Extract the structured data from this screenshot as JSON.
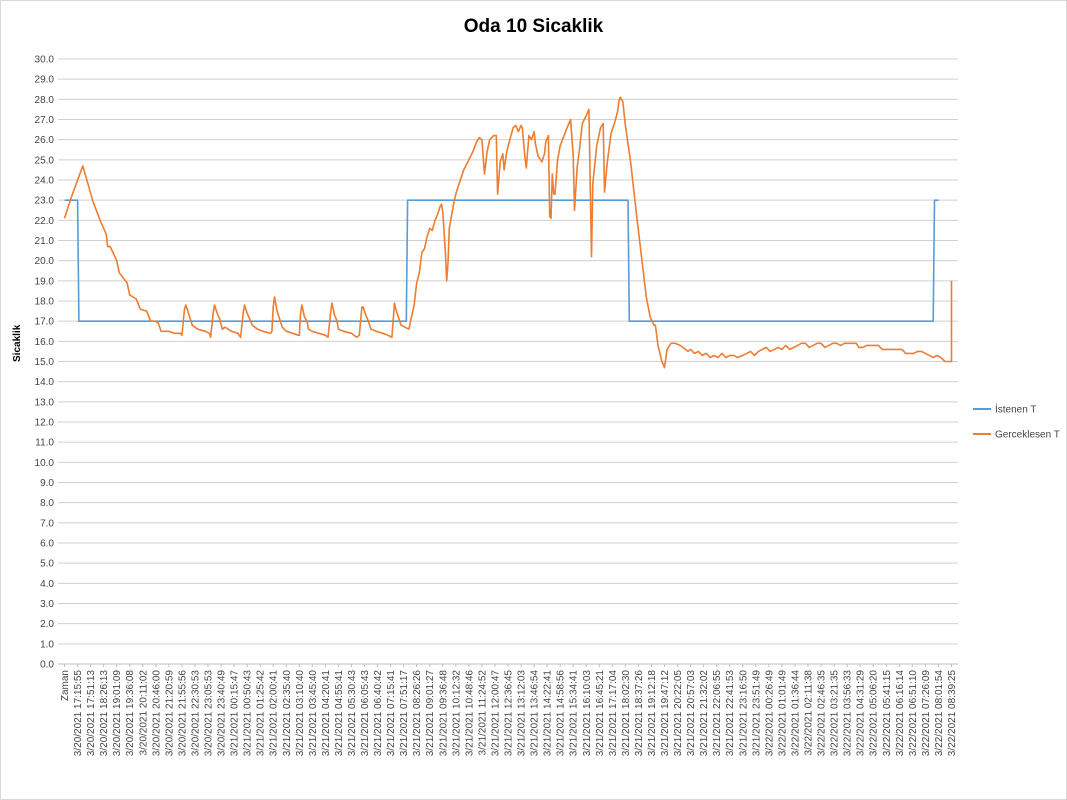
{
  "chart_data": {
    "type": "line",
    "title": "Oda 10 Sicaklik",
    "ylabel": "Sicaklik",
    "xlabel": "",
    "ylim": [
      0,
      30
    ],
    "ytick_step": 1,
    "grid": true,
    "legend_position": "right",
    "x_first_label": "Zaman",
    "x_tick_labels": [
      "3/20/2021 17:15:55",
      "3/20/2021 17:51:13",
      "3/20/2021 18:26:13",
      "3/20/2021 19:01:09",
      "3/20/2021 19:36:08",
      "3/20/2021 20:11:02",
      "3/20/2021 20:46:00",
      "3/20/2021 21:20:59",
      "3/20/2021 21:55:56",
      "3/20/2021 22:30:53",
      "3/20/2021 23:05:53",
      "3/20/2021 23:40:49",
      "3/21/2021 00:15:47",
      "3/21/2021 00:50:43",
      "3/21/2021 01:25:42",
      "3/21/2021 02:00:41",
      "3/21/2021 02:35:40",
      "3/21/2021 03:10:40",
      "3/21/2021 03:45:40",
      "3/21/2021 04:20:41",
      "3/21/2021 04:55:41",
      "3/21/2021 05:30:43",
      "3/21/2021 06:05:43",
      "3/21/2021 06:40:42",
      "3/21/2021 07:15:41",
      "3/21/2021 07:51:17",
      "3/21/2021 08:26:26",
      "3/21/2021 09:01:27",
      "3/21/2021 09:36:48",
      "3/21/2021 10:12:32",
      "3/21/2021 10:48:46",
      "3/21/2021 11:24:52",
      "3/21/2021 12:00:47",
      "3/21/2021 12:36:45",
      "3/21/2021 13:12:03",
      "3/21/2021 13:46:54",
      "3/21/2021 14:22:41",
      "3/21/2021 14:58:56",
      "3/21/2021 15:34:41",
      "3/21/2021 16:10:03",
      "3/21/2021 16:45:21",
      "3/21/2021 17:17:04",
      "3/21/2021 18:02:30",
      "3/21/2021 18:37:26",
      "3/21/2021 19:12:18",
      "3/21/2021 19:47:12",
      "3/21/2021 20:22:05",
      "3/21/2021 20:57:03",
      "3/21/2021 21:32:02",
      "3/21/2021 22:06:55",
      "3/21/2021 22:41:53",
      "3/21/2021 23:16:50",
      "3/21/2021 23:51:49",
      "3/22/2021 00:26:49",
      "3/22/2021 01:01:49",
      "3/22/2021 01:36:44",
      "3/22/2021 02:11:38",
      "3/22/2021 02:46:35",
      "3/22/2021 03:21:35",
      "3/22/2021 03:56:33",
      "3/22/2021 04:31:29",
      "3/22/2021 05:06:20",
      "3/22/2021 05:41:15",
      "3/22/2021 06:16:14",
      "3/22/2021 06:51:10",
      "3/22/2021 07:26:09",
      "3/22/2021 08:01:54",
      "3/22/2021 08:39:25"
    ],
    "series": [
      {
        "name": "İstenen T",
        "color": "#5b9bd5",
        "points": [
          [
            0,
            23
          ],
          [
            1,
            23
          ],
          [
            1.1,
            17
          ],
          [
            26.2,
            17
          ],
          [
            26.3,
            23
          ],
          [
            43.2,
            23
          ],
          [
            43.3,
            17
          ],
          [
            66.6,
            17
          ],
          [
            66.7,
            23
          ],
          [
            67.0,
            23
          ]
        ]
      },
      {
        "name": "Gerceklesen T",
        "color": "#ed7d31",
        "points": [
          [
            0,
            22.1
          ],
          [
            0.5,
            23.1
          ],
          [
            1.0,
            24.0
          ],
          [
            1.4,
            24.7
          ],
          [
            1.8,
            23.8
          ],
          [
            2.2,
            22.9
          ],
          [
            2.8,
            21.9
          ],
          [
            3.2,
            21.3
          ],
          [
            3.3,
            20.7
          ],
          [
            3.5,
            20.7
          ],
          [
            4.0,
            20.0
          ],
          [
            4.2,
            19.4
          ],
          [
            4.8,
            18.9
          ],
          [
            5.0,
            18.3
          ],
          [
            5.5,
            18.1
          ],
          [
            5.8,
            17.6
          ],
          [
            6.3,
            17.5
          ],
          [
            6.6,
            17.0
          ],
          [
            7.0,
            17.0
          ],
          [
            7.2,
            16.9
          ],
          [
            7.4,
            16.5
          ],
          [
            8.0,
            16.5
          ],
          [
            8.4,
            16.4
          ],
          [
            8.9,
            16.4
          ],
          [
            9.0,
            16.3
          ],
          [
            9.2,
            17.6
          ],
          [
            9.3,
            17.8
          ],
          [
            9.6,
            17.2
          ],
          [
            9.8,
            16.8
          ],
          [
            10.2,
            16.6
          ],
          [
            10.8,
            16.5
          ],
          [
            11.1,
            16.4
          ],
          [
            11.2,
            16.2
          ],
          [
            11.4,
            17.4
          ],
          [
            11.5,
            17.8
          ],
          [
            11.7,
            17.4
          ],
          [
            11.9,
            17.1
          ],
          [
            12.1,
            16.6
          ],
          [
            12.3,
            16.7
          ],
          [
            12.8,
            16.5
          ],
          [
            13.3,
            16.4
          ],
          [
            13.5,
            16.2
          ],
          [
            13.7,
            17.4
          ],
          [
            13.8,
            17.8
          ],
          [
            14.0,
            17.4
          ],
          [
            14.2,
            17.1
          ],
          [
            14.4,
            16.8
          ],
          [
            14.8,
            16.6
          ],
          [
            15.2,
            16.5
          ],
          [
            15.8,
            16.4
          ],
          [
            15.9,
            16.5
          ],
          [
            16.0,
            17.7
          ],
          [
            16.1,
            18.2
          ],
          [
            16.3,
            17.5
          ],
          [
            16.5,
            17.1
          ],
          [
            16.7,
            16.7
          ],
          [
            17.0,
            16.5
          ],
          [
            17.5,
            16.4
          ],
          [
            17.9,
            16.3
          ],
          [
            18.0,
            16.3
          ],
          [
            18.1,
            17.4
          ],
          [
            18.2,
            17.8
          ],
          [
            18.4,
            17.2
          ],
          [
            18.6,
            17.0
          ],
          [
            18.7,
            16.6
          ],
          [
            19.0,
            16.5
          ],
          [
            19.5,
            16.4
          ],
          [
            20.0,
            16.3
          ],
          [
            20.2,
            16.2
          ],
          [
            20.4,
            17.4
          ],
          [
            20.5,
            17.9
          ],
          [
            20.7,
            17.3
          ],
          [
            20.9,
            17.0
          ],
          [
            21.0,
            16.6
          ],
          [
            21.4,
            16.5
          ],
          [
            22.0,
            16.4
          ],
          [
            22.4,
            16.2
          ],
          [
            22.6,
            16.3
          ],
          [
            22.8,
            17.7
          ],
          [
            22.9,
            17.7
          ],
          [
            23.1,
            17.3
          ],
          [
            23.3,
            17.0
          ],
          [
            23.5,
            16.6
          ],
          [
            23.9,
            16.5
          ],
          [
            24.4,
            16.4
          ],
          [
            24.8,
            16.3
          ],
          [
            25.1,
            16.2
          ],
          [
            25.3,
            17.9
          ],
          [
            25.4,
            17.6
          ],
          [
            25.6,
            17.2
          ],
          [
            25.8,
            16.8
          ],
          [
            26.1,
            16.7
          ],
          [
            26.4,
            16.6
          ],
          [
            26.6,
            17.2
          ],
          [
            26.8,
            17.8
          ],
          [
            27.0,
            18.9
          ],
          [
            27.2,
            19.4
          ],
          [
            27.4,
            20.4
          ],
          [
            27.6,
            20.6
          ],
          [
            27.8,
            21.2
          ],
          [
            28.0,
            21.6
          ],
          [
            28.2,
            21.5
          ],
          [
            28.4,
            22.0
          ],
          [
            28.6,
            22.3
          ],
          [
            28.8,
            22.7
          ],
          [
            28.9,
            22.8
          ],
          [
            29.0,
            22.4
          ],
          [
            29.2,
            20.4
          ],
          [
            29.3,
            19.0
          ],
          [
            29.4,
            19.9
          ],
          [
            29.5,
            21.6
          ],
          [
            29.8,
            22.7
          ],
          [
            30.0,
            23.3
          ],
          [
            30.3,
            23.9
          ],
          [
            30.6,
            24.5
          ],
          [
            31.0,
            25.0
          ],
          [
            31.3,
            25.4
          ],
          [
            31.6,
            25.9
          ],
          [
            31.8,
            26.1
          ],
          [
            32.0,
            26.0
          ],
          [
            32.2,
            24.3
          ],
          [
            32.4,
            25.4
          ],
          [
            32.6,
            26.0
          ],
          [
            32.9,
            26.2
          ],
          [
            33.1,
            26.2
          ],
          [
            33.2,
            23.3
          ],
          [
            33.4,
            24.9
          ],
          [
            33.6,
            25.3
          ],
          [
            33.7,
            24.5
          ],
          [
            33.9,
            25.4
          ],
          [
            34.1,
            25.9
          ],
          [
            34.4,
            26.6
          ],
          [
            34.6,
            26.7
          ],
          [
            34.8,
            26.4
          ],
          [
            35.0,
            26.7
          ],
          [
            35.1,
            26.6
          ],
          [
            35.3,
            25.1
          ],
          [
            35.4,
            24.6
          ],
          [
            35.6,
            26.2
          ],
          [
            35.8,
            26.0
          ],
          [
            36.0,
            26.4
          ],
          [
            36.1,
            25.8
          ],
          [
            36.3,
            25.2
          ],
          [
            36.6,
            24.9
          ],
          [
            36.8,
            25.3
          ],
          [
            36.9,
            25.9
          ],
          [
            37.1,
            26.2
          ],
          [
            37.2,
            22.2
          ],
          [
            37.3,
            22.1
          ],
          [
            37.4,
            24.3
          ],
          [
            37.5,
            23.3
          ],
          [
            37.6,
            23.3
          ],
          [
            37.8,
            25.0
          ],
          [
            38.0,
            25.7
          ],
          [
            38.3,
            26.2
          ],
          [
            38.6,
            26.7
          ],
          [
            38.8,
            27.0
          ],
          [
            39.0,
            25.2
          ],
          [
            39.1,
            22.5
          ],
          [
            39.3,
            24.6
          ],
          [
            39.5,
            25.6
          ],
          [
            39.7,
            26.8
          ],
          [
            40.0,
            27.2
          ],
          [
            40.2,
            27.5
          ],
          [
            40.4,
            20.2
          ],
          [
            40.5,
            23.8
          ],
          [
            40.8,
            25.7
          ],
          [
            41.1,
            26.6
          ],
          [
            41.3,
            26.8
          ],
          [
            41.4,
            23.4
          ],
          [
            41.6,
            24.8
          ],
          [
            41.9,
            26.3
          ],
          [
            42.2,
            26.9
          ],
          [
            42.4,
            27.4
          ],
          [
            42.5,
            27.9
          ],
          [
            42.6,
            28.1
          ],
          [
            42.8,
            27.9
          ],
          [
            43.0,
            26.7
          ],
          [
            43.4,
            24.9
          ],
          [
            43.8,
            22.6
          ],
          [
            44.2,
            20.4
          ],
          [
            44.6,
            18.2
          ],
          [
            44.9,
            17.2
          ],
          [
            45.2,
            16.8
          ],
          [
            45.3,
            16.8
          ],
          [
            45.5,
            15.8
          ],
          [
            45.8,
            15.0
          ],
          [
            46.0,
            14.7
          ],
          [
            46.2,
            15.6
          ],
          [
            46.5,
            15.9
          ],
          [
            46.8,
            15.9
          ],
          [
            47.2,
            15.8
          ],
          [
            47.6,
            15.6
          ],
          [
            47.8,
            15.5
          ],
          [
            48.0,
            15.6
          ],
          [
            48.3,
            15.4
          ],
          [
            48.6,
            15.5
          ],
          [
            48.9,
            15.3
          ],
          [
            49.2,
            15.4
          ],
          [
            49.5,
            15.2
          ],
          [
            49.8,
            15.3
          ],
          [
            50.1,
            15.2
          ],
          [
            50.4,
            15.4
          ],
          [
            50.7,
            15.2
          ],
          [
            51.0,
            15.3
          ],
          [
            51.3,
            15.3
          ],
          [
            51.6,
            15.2
          ],
          [
            52.0,
            15.3
          ],
          [
            52.3,
            15.4
          ],
          [
            52.6,
            15.5
          ],
          [
            52.9,
            15.3
          ],
          [
            53.2,
            15.5
          ],
          [
            53.5,
            15.6
          ],
          [
            53.8,
            15.7
          ],
          [
            54.1,
            15.5
          ],
          [
            54.4,
            15.6
          ],
          [
            54.7,
            15.7
          ],
          [
            55.0,
            15.6
          ],
          [
            55.3,
            15.8
          ],
          [
            55.6,
            15.6
          ],
          [
            55.9,
            15.7
          ],
          [
            56.2,
            15.8
          ],
          [
            56.5,
            15.9
          ],
          [
            56.8,
            15.9
          ],
          [
            57.1,
            15.7
          ],
          [
            57.4,
            15.8
          ],
          [
            57.7,
            15.9
          ],
          [
            58.0,
            15.9
          ],
          [
            58.3,
            15.7
          ],
          [
            58.6,
            15.8
          ],
          [
            58.9,
            15.9
          ],
          [
            59.2,
            15.9
          ],
          [
            59.5,
            15.8
          ],
          [
            59.8,
            15.9
          ],
          [
            60.1,
            15.9
          ],
          [
            60.4,
            15.9
          ],
          [
            60.7,
            15.9
          ],
          [
            60.9,
            15.7
          ],
          [
            61.2,
            15.7
          ],
          [
            61.5,
            15.8
          ],
          [
            61.8,
            15.8
          ],
          [
            62.1,
            15.8
          ],
          [
            62.4,
            15.8
          ],
          [
            62.7,
            15.6
          ],
          [
            63.0,
            15.6
          ],
          [
            63.3,
            15.6
          ],
          [
            63.6,
            15.6
          ],
          [
            63.9,
            15.6
          ],
          [
            64.2,
            15.6
          ],
          [
            64.5,
            15.4
          ],
          [
            64.8,
            15.4
          ],
          [
            65.1,
            15.4
          ],
          [
            65.4,
            15.5
          ],
          [
            65.7,
            15.5
          ],
          [
            66.0,
            15.4
          ],
          [
            66.3,
            15.3
          ],
          [
            66.6,
            15.2
          ],
          [
            66.9,
            15.3
          ],
          [
            67.2,
            15.2
          ],
          [
            67.5,
            15.0
          ],
          [
            67.8,
            15.0
          ],
          [
            68.1,
            15.0
          ],
          [
            68.4,
            15.1
          ],
          [
            68.7,
            15.1
          ],
          [
            69.0,
            15.1
          ],
          [
            69.3,
            18.6
          ],
          [
            69.5,
            17.5
          ],
          [
            69.8,
            17.0
          ],
          [
            70.2,
            16.8
          ],
          [
            70.5,
            16.7
          ],
          [
            70.8,
            16.8
          ],
          [
            71.0,
            17.0
          ],
          [
            71.2,
            19.0
          ]
        ]
      }
    ]
  }
}
